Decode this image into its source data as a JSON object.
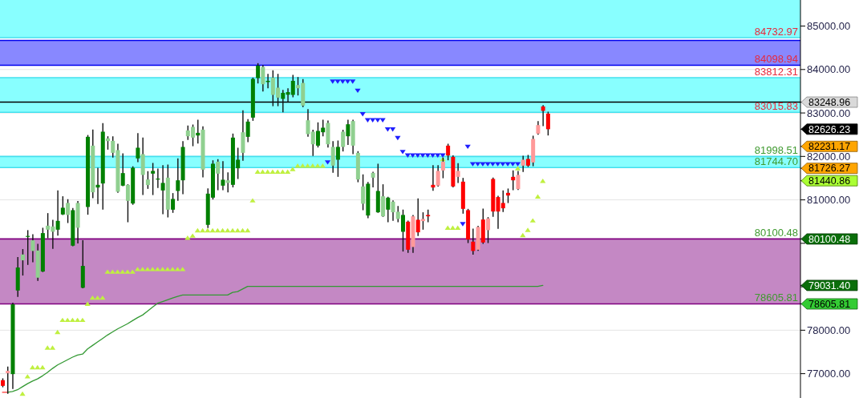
{
  "chart_data": {
    "type": "candlestick",
    "categories": [
      null,
      null,
      null,
      null,
      null,
      null,
      null,
      null,
      null,
      null,
      null,
      null,
      null,
      null,
      null,
      null,
      null,
      null,
      null,
      null,
      null,
      null,
      null,
      null,
      null,
      null,
      null,
      null,
      null,
      null,
      null,
      null,
      null,
      null,
      null,
      null,
      null,
      null,
      null,
      null,
      null,
      null,
      null,
      null,
      null,
      null,
      null,
      null,
      null,
      null,
      null,
      null,
      null,
      null,
      null,
      null,
      null,
      null,
      null,
      null,
      null,
      null,
      null,
      null,
      null,
      null,
      null,
      null,
      null,
      null,
      null,
      null,
      null,
      null,
      null,
      null,
      null,
      null,
      null,
      null,
      null,
      null,
      null,
      null,
      null,
      null,
      null,
      null,
      null,
      null,
      null,
      null,
      null,
      null,
      null,
      null,
      null,
      null,
      null,
      null,
      null,
      null,
      null,
      null,
      null,
      null,
      null,
      null,
      null,
      null,
      null,
      null,
      null,
      null,
      null,
      null,
      null,
      null,
      null,
      null,
      null,
      null,
      null,
      null,
      null,
      null,
      null,
      null,
      null,
      null,
      null,
      null,
      null,
      null,
      null,
      null,
      null,
      null,
      null,
      null,
      null,
      null,
      null,
      null,
      null,
      null,
      null,
      null,
      null,
      null,
      null,
      null,
      null,
      null,
      null,
      null,
      null,
      null,
      null,
      null
    ],
    "ohlc": [
      [
        76850,
        76880,
        76700,
        76720
      ],
      [
        77010,
        77150,
        76550,
        77066
      ],
      [
        76990,
        78620,
        76660,
        78595
      ],
      [
        78914,
        79670,
        78780,
        79443
      ],
      [
        79743,
        79854,
        79271,
        79609
      ],
      [
        80150,
        80290,
        79516,
        80170
      ],
      [
        80069,
        80198,
        79577,
        79824
      ],
      [
        79835,
        79977,
        79148,
        79209
      ],
      [
        79351,
        80345,
        79351,
        80235
      ],
      [
        80406,
        80682,
        80130,
        80314
      ],
      [
        80388,
        80529,
        79885,
        80266
      ],
      [
        80314,
        81205,
        80192,
        80517
      ],
      [
        80664,
        81070,
        80664,
        80819
      ],
      [
        80929,
        81003,
        80480,
        80653
      ],
      [
        79946,
        80800,
        79946,
        80763
      ],
      [
        80929,
        80959,
        80008,
        80358
      ],
      [
        78977,
        80056,
        78977,
        79480
      ],
      [
        80837,
        82480,
        80671,
        82451
      ],
      [
        82248,
        82605,
        81051,
        81174
      ],
      [
        81285,
        81727,
        80916,
        81346
      ],
      [
        81377,
        82753,
        80787,
        82569
      ],
      [
        82414,
        82451,
        82169,
        82353
      ],
      [
        82359,
        82451,
        81985,
        82082
      ],
      [
        82145,
        82279,
        81174,
        81187
      ],
      [
        81327,
        82058,
        81327,
        81616
      ],
      [
        81346,
        81346,
        80498,
        80977
      ],
      [
        80916,
        81760,
        80900,
        81740
      ],
      [
        81954,
        82525,
        81880,
        82200
      ],
      [
        82053,
        82421,
        81124,
        81574
      ],
      [
        81469,
        81648,
        81266,
        81340
      ],
      [
        81604,
        81837,
        81124,
        81666
      ],
      [
        81480,
        81708,
        81285,
        81490
      ],
      [
        81217,
        81788,
        80682,
        81390
      ],
      [
        81511,
        81800,
        80609,
        80774
      ],
      [
        80774,
        81143,
        80714,
        81021
      ],
      [
        81205,
        81942,
        80990,
        81450
      ],
      [
        81450,
        82341,
        81143,
        82218
      ],
      [
        82598,
        82697,
        82390,
        82464
      ],
      [
        82679,
        82721,
        82248,
        82433
      ],
      [
        82482,
        82832,
        82311,
        82543
      ],
      [
        82617,
        82679,
        81530,
        81695
      ],
      [
        80425,
        81253,
        80364,
        81143
      ],
      [
        81051,
        81898,
        81021,
        81832
      ],
      [
        81880,
        81924,
        81235,
        81603
      ],
      [
        81327,
        81880,
        81235,
        81463
      ],
      [
        81450,
        81622,
        81187,
        81390
      ],
      [
        81346,
        82513,
        81300,
        82433
      ],
      [
        81727,
        82187,
        81493,
        81924
      ],
      [
        82556,
        83048,
        81911,
        82082
      ],
      [
        82451,
        82845,
        82340,
        82801
      ],
      [
        82893,
        83800,
        82832,
        83784
      ],
      [
        83803,
        84134,
        83692,
        84090
      ],
      [
        84061,
        84090,
        83508,
        83661
      ],
      [
        83711,
        83887,
        83582,
        83740
      ],
      [
        83814,
        83969,
        83169,
        83416
      ],
      [
        83582,
        83887,
        83169,
        83353
      ],
      [
        83324,
        83519,
        83029,
        83464
      ],
      [
        83420,
        83556,
        83261,
        83480
      ],
      [
        83416,
        83864,
        83372,
        83740
      ],
      [
        83642,
        83814,
        83416,
        83569
      ],
      [
        83692,
        83766,
        83150,
        83169
      ],
      [
        82832,
        83077,
        82464,
        82513
      ],
      [
        82569,
        82600,
        82022,
        82279
      ],
      [
        82248,
        82771,
        82219,
        82587
      ],
      [
        82556,
        82832,
        82477,
        82661
      ],
      [
        82771,
        82814,
        82219,
        82279
      ],
      [
        82219,
        82341,
        81635,
        81788
      ],
      [
        81924,
        82353,
        81543,
        82219
      ],
      [
        82569,
        82600,
        82127,
        82219
      ],
      [
        82464,
        82832,
        82279,
        82740
      ],
      [
        82814,
        82832,
        82064,
        82248
      ],
      [
        82082,
        82108,
        81419,
        81469
      ],
      [
        81309,
        81574,
        80775,
        80911
      ],
      [
        80640,
        81400,
        80590,
        81371
      ],
      [
        81622,
        81634,
        81298,
        81511
      ],
      [
        80714,
        81819,
        80714,
        81205
      ],
      [
        81082,
        81346,
        80622,
        80622
      ],
      [
        80775,
        81060,
        80498,
        81051
      ],
      [
        80959,
        80977,
        80529,
        80714
      ],
      [
        80727,
        80848,
        80498,
        80561
      ],
      [
        80266,
        80763,
        79824,
        80653
      ],
      [
        80498,
        80510,
        79793,
        79853
      ],
      [
        79916,
        80640,
        79793,
        80622
      ],
      [
        80542,
        81021,
        80180,
        80253
      ],
      [
        80511,
        80701,
        80327,
        80561
      ],
      [
        80653,
        80763,
        80498,
        80622
      ],
      [
        81346,
        81788,
        81224,
        81285
      ],
      [
        81327,
        81788,
        81320,
        81666
      ],
      [
        81677,
        81961,
        81511,
        81880
      ],
      [
        82248,
        82279,
        81924,
        82022
      ],
      [
        81990,
        82010,
        81300,
        81309
      ],
      [
        81530,
        81832,
        81401,
        81666
      ],
      [
        81419,
        81493,
        80695,
        80793
      ],
      [
        80763,
        80780,
        80019,
        80087
      ],
      [
        80038,
        80327,
        79750,
        79824
      ],
      [
        79853,
        80390,
        79840,
        80377
      ],
      [
        80548,
        80787,
        80000,
        80019
      ],
      [
        80303,
        80590,
        80019,
        80572
      ],
      [
        81482,
        81500,
        80622,
        80732
      ],
      [
        81064,
        81080,
        80345,
        80732
      ],
      [
        80929,
        81205,
        80732,
        80806
      ],
      [
        81161,
        81248,
        80940,
        81101
      ],
      [
        81530,
        81666,
        81235,
        81450
      ],
      [
        81248,
        81653,
        81240,
        81574
      ],
      [
        81788,
        82003,
        81653,
        81924
      ],
      [
        81942,
        82022,
        81770,
        81788
      ],
      [
        81861,
        82464,
        81788,
        82403
      ],
      [
        82525,
        82801,
        82510,
        82721
      ],
      [
        83151,
        83169,
        82709,
        83048
      ],
      [
        82985,
        83016,
        82495,
        82626.23
      ],
      null,
      null,
      null,
      null,
      null,
      null,
      null,
      null,
      null,
      null,
      null,
      null,
      null,
      null,
      null,
      null,
      null,
      null,
      null,
      null,
      null,
      null,
      null,
      null,
      null,
      null,
      null,
      null,
      null,
      null,
      null,
      null,
      null,
      null,
      null,
      null,
      null,
      null,
      null,
      null,
      null,
      null,
      null,
      null,
      null,
      null,
      null,
      null,
      null,
      null
    ],
    "colors": [
      "#ff0000",
      "#ff9999",
      "#008000",
      "#008000",
      "#90d090",
      "#008000",
      "#90d090",
      "#90d090",
      "#008000",
      "#90d090",
      "#90d090",
      "#008000",
      "#008000",
      "#90d090",
      "#008000",
      "#90d090",
      "#008000",
      "#008000",
      "#90d090",
      "#008000",
      "#008000",
      "#90d090",
      "#90d090",
      "#90d090",
      "#008000",
      "#90d090",
      "#008000",
      "#008000",
      "#90d090",
      "#90d090",
      "#008000",
      "#008000",
      "#008000",
      "#90d090",
      "#008000",
      "#008000",
      "#008000",
      "#90d090",
      "#90d090",
      "#008000",
      "#90d090",
      "#008000",
      "#008000",
      "#90d090",
      "#008000",
      "#90d090",
      "#008000",
      "#008000",
      "#90d090",
      "#008000",
      "#008000",
      "#008000",
      "#90d090",
      "#008000",
      "#90d090",
      "#90d090",
      "#008000",
      "#008000",
      "#008000",
      "#90d090",
      "#90d090",
      "#90d090",
      "#90d090",
      "#008000",
      "#008000",
      "#90d090",
      "#90d090",
      "#008000",
      "#90d090",
      "#008000",
      "#90d090",
      "#90d090",
      "#90d090",
      "#008000",
      "#90d090",
      "#008000",
      "#90d090",
      "#008000",
      "#90d090",
      "#90d090",
      "#008000",
      "#ff0000",
      "#ff9999",
      "#ff0000",
      "#ff9999",
      "#ff0000",
      "#ff0000",
      "#ff9999",
      "#ff9999",
      "#ff0000",
      "#ff0000",
      "#ff9999",
      "#ff0000",
      "#ff0000",
      "#ff0000",
      "#ff9999",
      "#ff0000",
      "#ff9999",
      "#ff0000",
      "#ff0000",
      "#ff0000",
      "#ff0000",
      "#ff0000",
      "#ff9999",
      "#ff9999",
      "#ff0000",
      "#ff9999",
      "#ff9999",
      "#ff0000",
      "#ff0000",
      null,
      null,
      null,
      null,
      null,
      null,
      null,
      null,
      null,
      null,
      null,
      null,
      null,
      null,
      null,
      null,
      null,
      null,
      null,
      null,
      null,
      null,
      null,
      null,
      null,
      null,
      null,
      null,
      null,
      null,
      null,
      null,
      null,
      null,
      null,
      null,
      null,
      null,
      null,
      null,
      null,
      null,
      null,
      null,
      null,
      null,
      null,
      null,
      null,
      null
    ],
    "series": [
      {
        "type": "line",
        "color": "#ff3333",
        "values": [
          76570,
          76570,
          null,
          null,
          null,
          null,
          null,
          null,
          null,
          null,
          null,
          null,
          null,
          null,
          null,
          null,
          null,
          null,
          null,
          null,
          null,
          null,
          null,
          null,
          null,
          null,
          null,
          null,
          null,
          null,
          null,
          null,
          null,
          null,
          null,
          null,
          null,
          null,
          null,
          null,
          null,
          null,
          null,
          null,
          null,
          null,
          null,
          null,
          null,
          null,
          null,
          null,
          null,
          null,
          null,
          null,
          null,
          null,
          null,
          null,
          null,
          null,
          null,
          null,
          null,
          null,
          null,
          null,
          null,
          null,
          null,
          null,
          null,
          null,
          null,
          null,
          null,
          null,
          null,
          null,
          null,
          null,
          null,
          null,
          null,
          null,
          null,
          null,
          null,
          null,
          null,
          null,
          null,
          null,
          null,
          null,
          null,
          null,
          null,
          null,
          null,
          null,
          null,
          null,
          null,
          null,
          null,
          null,
          null,
          null,
          null,
          null,
          null,
          null,
          null,
          null,
          null,
          null,
          null,
          null,
          null,
          null,
          null,
          null,
          null,
          null,
          null,
          null,
          null,
          null,
          null,
          null,
          null,
          null,
          null,
          null,
          null,
          null,
          null,
          null,
          null,
          null,
          null,
          null,
          null,
          null,
          null,
          null,
          null,
          null,
          null,
          null,
          null,
          null,
          null,
          null,
          null,
          null,
          null,
          null
        ]
      },
      {
        "type": "line",
        "color": "#339933",
        "values": [
          null,
          76570,
          76590,
          76630,
          76700,
          76770,
          76830,
          76880,
          76950,
          77030,
          77120,
          77200,
          77260,
          77320,
          77380,
          77430,
          77450,
          77570,
          77650,
          77730,
          77810,
          77890,
          77960,
          78030,
          78090,
          78150,
          78220,
          78290,
          78350,
          78440,
          78530,
          78620,
          78660,
          78700,
          78740,
          78780,
          78810,
          78810,
          78810,
          78810,
          78810,
          78810,
          78810,
          78810,
          78810,
          78810,
          78870,
          78890,
          78950,
          79010,
          79010,
          79010,
          79010,
          79010,
          79010,
          79010,
          79010,
          79010,
          79010,
          79010,
          79010,
          79010,
          79010,
          79010,
          79010,
          79010,
          79010,
          79010,
          79010,
          79010,
          79010,
          79010,
          79010,
          79010,
          79010,
          79010,
          79010,
          79010,
          79010,
          79010,
          79010,
          79010,
          79010,
          79010,
          79010,
          79010,
          79010,
          79010,
          79010,
          79010,
          79010,
          79010,
          79010,
          79010,
          79010,
          79010,
          79010,
          79010,
          79010,
          79010,
          79010,
          79010,
          79010,
          79010,
          79010,
          79010,
          79010,
          79010,
          79031.4,
          null,
          null,
          null,
          null,
          null,
          null,
          null,
          null,
          null,
          null,
          null,
          null,
          null,
          null,
          null,
          null,
          null,
          null,
          null,
          null,
          null,
          null,
          null,
          null,
          null,
          null,
          null,
          null,
          null,
          null,
          null,
          null,
          null,
          null,
          null,
          null,
          null,
          null,
          null,
          null,
          null,
          null,
          null,
          null,
          null,
          null,
          null,
          null,
          null,
          null,
          null
        ]
      },
      {
        "type": "scatter",
        "color": "#c0f040",
        "marker": "triangle",
        "values": [
          null,
          null,
          null,
          null,
          76540,
          76940,
          77150,
          77150,
          77150,
          77600,
          77600,
          77960,
          78240,
          78240,
          78240,
          78240,
          78240,
          78610,
          78750,
          78750,
          78750,
          79350,
          79350,
          79350,
          79350,
          79350,
          79350,
          79410,
          79410,
          79410,
          79410,
          79410,
          79410,
          79410,
          79410,
          79410,
          79410,
          80130,
          80180,
          80300,
          80300,
          80300,
          80300,
          80300,
          80300,
          80300,
          80300,
          80300,
          80300,
          80300,
          80990,
          81650,
          81650,
          81650,
          81650,
          81650,
          81650,
          81650,
          81710,
          81790,
          81790,
          81790,
          81790,
          81790,
          81790,
          null,
          null,
          null,
          null,
          null,
          null,
          null,
          null,
          null,
          null,
          null,
          null,
          null,
          null,
          null,
          null,
          null,
          null,
          null,
          null,
          null,
          null,
          null,
          81940,
          80360,
          80360,
          80360,
          null,
          null,
          null,
          null,
          null,
          null,
          null,
          null,
          null,
          null,
          null,
          81730,
          80190,
          80310,
          80530,
          81080,
          81440,
          null,
          null,
          null,
          null,
          null,
          null,
          null,
          null,
          null,
          null,
          null,
          null,
          null,
          null,
          null,
          null,
          null,
          null,
          null,
          null,
          null,
          null,
          null,
          null,
          null,
          null,
          null,
          null,
          null,
          null,
          null,
          null,
          null,
          null,
          null,
          null,
          null,
          null,
          null,
          null,
          null,
          null,
          null,
          null,
          null,
          null,
          null,
          null,
          null,
          null,
          null
        ]
      },
      {
        "type": "scatter",
        "color": "#1f1fff",
        "marker": "triangle",
        "values": [
          null,
          null,
          null,
          null,
          null,
          null,
          null,
          null,
          null,
          null,
          null,
          null,
          null,
          null,
          null,
          null,
          null,
          null,
          null,
          null,
          null,
          null,
          null,
          null,
          null,
          null,
          null,
          null,
          null,
          null,
          null,
          null,
          null,
          null,
          null,
          null,
          null,
          null,
          null,
          null,
          null,
          null,
          null,
          null,
          null,
          null,
          null,
          null,
          null,
          null,
          null,
          null,
          null,
          null,
          null,
          null,
          null,
          null,
          null,
          null,
          null,
          null,
          null,
          null,
          null,
          81860,
          83720,
          83720,
          83720,
          83720,
          83720,
          83510,
          82970,
          82830,
          82830,
          82830,
          82830,
          82620,
          82620,
          82420,
          82100,
          82020,
          82020,
          82020,
          82020,
          82020,
          82020,
          82020,
          82020,
          null,
          null,
          null,
          80440,
          82220,
          81820,
          81820,
          81820,
          81820,
          81820,
          81820,
          81820,
          81820,
          81820,
          81820,
          null,
          null,
          null,
          null,
          null,
          null,
          null,
          null,
          null,
          null,
          null,
          null,
          null,
          null,
          null,
          null,
          null,
          null,
          null,
          null,
          null,
          null,
          null,
          null,
          null,
          null,
          null,
          null,
          null,
          null,
          null,
          null,
          null,
          null,
          null,
          null,
          null,
          null,
          null,
          null,
          null,
          null,
          null,
          null,
          null,
          null,
          null,
          null,
          null,
          null,
          null,
          null,
          null,
          null,
          null,
          null
        ]
      }
    ],
    "ylim": [
      76440,
      85600
    ],
    "yticks": [
      {
        "value": 77000,
        "label": "77000.00"
      },
      {
        "value": 78000,
        "label": "78000.00"
      },
      {
        "value": 78605.81,
        "label": "78605.81"
      },
      {
        "value": 79000,
        "label": null
      },
      {
        "value": 79031.4,
        "label": "79031.40"
      },
      {
        "value": 80000,
        "label": null
      },
      {
        "value": 80100.48,
        "label": "80100.48"
      },
      {
        "value": 81000,
        "label": "81000.00"
      },
      {
        "value": 81440.86,
        "label": "81440.86"
      },
      {
        "value": 81726.27,
        "label": "81726.27"
      },
      {
        "value": 82000,
        "label": "82000.00"
      },
      {
        "value": 82231.17,
        "label": "82231.17"
      },
      {
        "value": 82626.23,
        "label": "82626.23"
      },
      {
        "value": 83000,
        "label": "83000.00"
      },
      {
        "value": 83248.96,
        "label": "83248.96"
      },
      {
        "value": 84000,
        "label": "84000.00"
      },
      {
        "value": 85000,
        "label": "85000.00"
      }
    ],
    "grid": "y",
    "bands": [
      {
        "axis": "y",
        "from": 84732.97,
        "to": 85600,
        "color": "#88ffff"
      },
      {
        "axis": "y",
        "from": 84098.94,
        "to": 84670,
        "color": "#8888ff"
      },
      {
        "axis": "y",
        "from": 83015.83,
        "to": 83812.31,
        "color": "#88ffff"
      },
      {
        "axis": "y",
        "from": 81744.7,
        "to": 81998.51,
        "color": "#88ffff"
      },
      {
        "axis": "y",
        "from": 78605.81,
        "to": 80100.48,
        "color": "#c488c4"
      }
    ],
    "ref_lines": [
      {
        "axis": "y",
        "value": 84732.97,
        "label": "84732.97",
        "color": "#44e0ee"
      },
      {
        "axis": "y",
        "value": 84670,
        "color": "#0000ee"
      },
      {
        "axis": "y",
        "value": 84098.94,
        "label": "84098.94",
        "color": "#0000ee"
      },
      {
        "axis": "y",
        "value": 83812.31,
        "label": "83812.31",
        "color": "#44e0ee"
      },
      {
        "axis": "y",
        "value": 83248.96,
        "color": "#000000"
      },
      {
        "axis": "y",
        "value": 83015.83,
        "label": "83015.83",
        "color": "#44e0ee"
      },
      {
        "axis": "y",
        "value": 81998.51,
        "label": "81998.51",
        "color": "#44e0ee"
      },
      {
        "axis": "y",
        "value": 81744.7,
        "label": "81744.70",
        "color": "#44e0ee"
      },
      {
        "axis": "y",
        "value": 80100.48,
        "label": "80100.48",
        "color": "#800080"
      },
      {
        "axis": "y",
        "value": 78605.81,
        "label": "78605.81",
        "color": "#800080"
      }
    ]
  }
}
